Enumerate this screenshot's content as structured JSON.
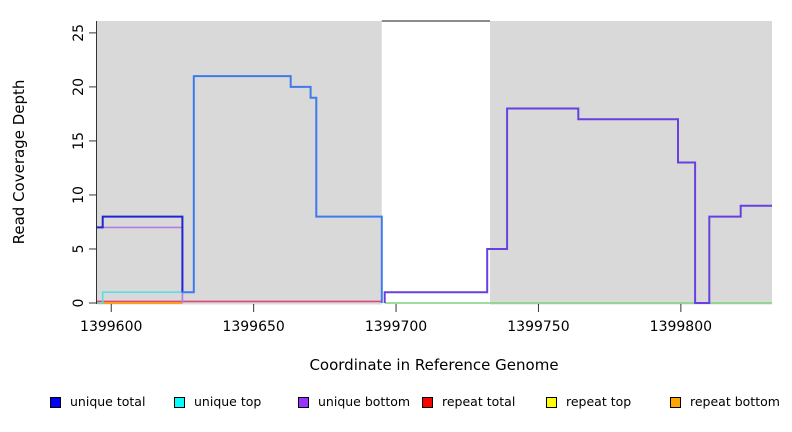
{
  "chart_data": {
    "type": "line",
    "subtype": "step-coverage-plot",
    "xlabel": "Coordinate in Reference Genome",
    "ylabel": "Read Coverage Depth",
    "xlim": [
      1399595,
      1399832
    ],
    "ylim": [
      0,
      26.1
    ],
    "x_ticks": [
      1399600,
      1399650,
      1399700,
      1399750,
      1399800
    ],
    "y_ticks": [
      0,
      5,
      10,
      15,
      20,
      25
    ],
    "grid": "off",
    "background_regions": [
      {
        "name": "left-flank-shading",
        "x0": 1399595,
        "x1": 1399695,
        "color": "#d9d9d9"
      },
      {
        "name": "center-gap",
        "x0": 1399695,
        "x1": 1399733,
        "color": "#ffffff"
      },
      {
        "name": "right-flank-shading",
        "x0": 1399733,
        "x1": 1399832,
        "color": "#d9d9d9"
      }
    ],
    "gap_top_border": {
      "x0": 1399695,
      "x1": 1399733,
      "color": "#666666"
    },
    "series": [
      {
        "name": "zero-coverage-line-right",
        "color": "#7dd27d",
        "width": 1.6,
        "points": [
          [
            1399696,
            0
          ],
          [
            1399832,
            0
          ]
        ]
      },
      {
        "name": "repeat-total-line",
        "color": "#e0447a",
        "width": 1.6,
        "points": [
          [
            1399595,
            0.15
          ],
          [
            1399695,
            0.15
          ]
        ]
      },
      {
        "name": "repeat-bottom-line",
        "color": "#ff9d1e",
        "width": 2,
        "points": [
          [
            1399595,
            0
          ],
          [
            1399625,
            0
          ]
        ]
      },
      {
        "name": "unique-top-line",
        "color": "#5bdde4",
        "width": 1.6,
        "points": [
          [
            1399595,
            0
          ],
          [
            1399597,
            0
          ],
          [
            1399597,
            1
          ],
          [
            1399625,
            1
          ],
          [
            1399625,
            0
          ]
        ]
      },
      {
        "name": "unique-bottom-line",
        "color": "#b27fe0",
        "width": 1.6,
        "points": [
          [
            1399595,
            7
          ],
          [
            1399625,
            7
          ],
          [
            1399625,
            0
          ]
        ]
      },
      {
        "name": "unique-total-line-left",
        "color": "#2323d3",
        "width": 2,
        "points": [
          [
            1399595,
            7
          ],
          [
            1399597,
            7
          ],
          [
            1399597,
            8
          ],
          [
            1399625,
            8
          ],
          [
            1399625,
            1
          ]
        ]
      },
      {
        "name": "unique-total-line-mid",
        "color": "#3d7bed",
        "width": 2,
        "points": [
          [
            1399625,
            1
          ],
          [
            1399629,
            1
          ],
          [
            1399629,
            21
          ],
          [
            1399663,
            21
          ],
          [
            1399663,
            20
          ],
          [
            1399670,
            20
          ],
          [
            1399670,
            19
          ],
          [
            1399672,
            19
          ],
          [
            1399672,
            8
          ],
          [
            1399695,
            8
          ],
          [
            1399695,
            0
          ]
        ]
      },
      {
        "name": "unique-total-line-right",
        "color": "#6740e0",
        "width": 2,
        "points": [
          [
            1399696,
            0
          ],
          [
            1399696,
            1
          ],
          [
            1399732,
            1
          ],
          [
            1399732,
            5
          ],
          [
            1399739,
            5
          ],
          [
            1399739,
            18
          ],
          [
            1399764,
            18
          ],
          [
            1399764,
            17
          ],
          [
            1399799,
            17
          ],
          [
            1399799,
            13
          ],
          [
            1399805,
            13
          ],
          [
            1399805,
            0
          ],
          [
            1399810,
            0
          ],
          [
            1399810,
            8
          ],
          [
            1399821,
            8
          ],
          [
            1399821,
            9
          ],
          [
            1399832,
            9
          ]
        ]
      }
    ],
    "legend": {
      "position": "bottom",
      "items": [
        {
          "label": "unique total",
          "color": "#0000ff"
        },
        {
          "label": "unique top",
          "color": "#00ffff"
        },
        {
          "label": "unique bottom",
          "color": "#9933ff"
        },
        {
          "label": "repeat total",
          "color": "#ff0000"
        },
        {
          "label": "repeat top",
          "color": "#ffff00"
        },
        {
          "label": "repeat bottom",
          "color": "#ffa500"
        }
      ]
    }
  }
}
